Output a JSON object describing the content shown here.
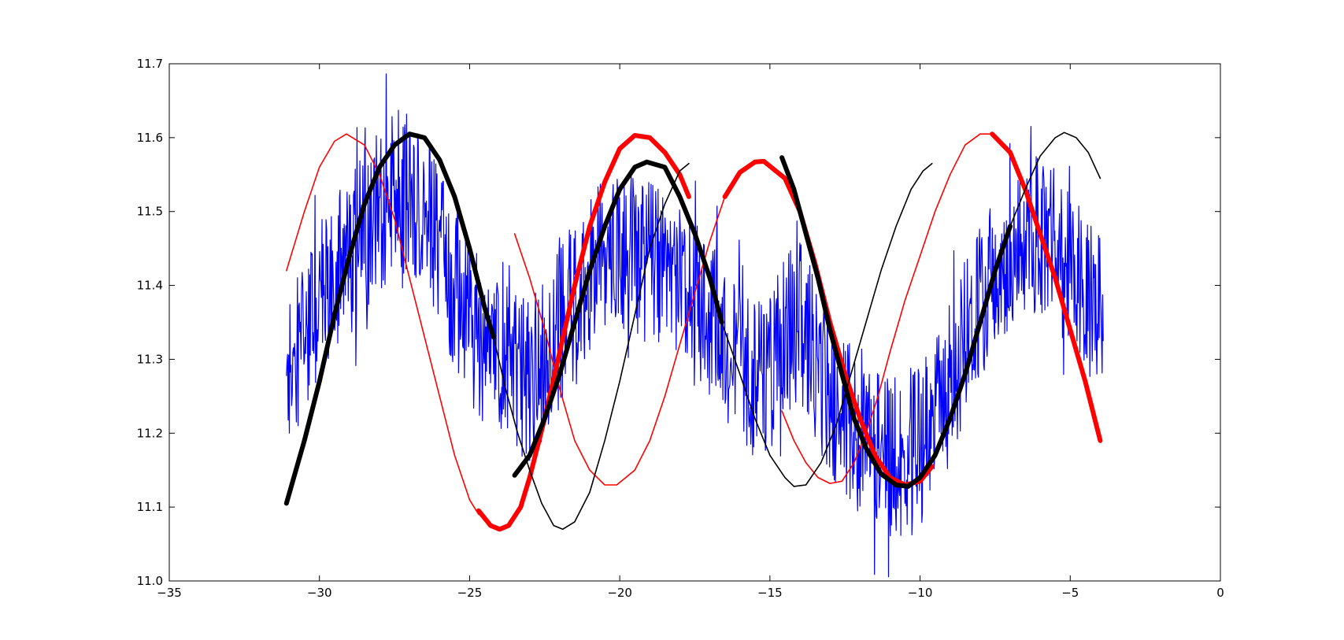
{
  "chart_data": {
    "type": "line",
    "title": "",
    "xlabel": "",
    "ylabel": "",
    "xlim": [
      -35,
      0
    ],
    "ylim": [
      11.0,
      11.7
    ],
    "xticks": [
      -35,
      -30,
      -25,
      -20,
      -15,
      -10,
      -5,
      0
    ],
    "yticks": [
      11.0,
      11.1,
      11.2,
      11.3,
      11.4,
      11.5,
      11.6,
      11.7
    ],
    "xtick_labels": [
      "−35",
      "−30",
      "−25",
      "−20",
      "−15",
      "−10",
      "−5",
      "0"
    ],
    "ytick_labels": [
      "11.0",
      "11.1",
      "11.2",
      "11.3",
      "11.4",
      "11.5",
      "11.6",
      "11.7"
    ],
    "grid": false,
    "legend": "none",
    "colors": {
      "noise": "#0000ff",
      "red": "#ff0000",
      "black": "#000000"
    },
    "series": [
      {
        "style": "noisy-signal",
        "color": "#0000ff",
        "x_range": [
          -31.1,
          -3.9
        ],
        "points": [
          [
            -31.1,
            11.27
          ],
          [
            -30.5,
            11.32
          ],
          [
            -30.0,
            11.37
          ],
          [
            -29.5,
            11.42
          ],
          [
            -29.0,
            11.45
          ],
          [
            -28.5,
            11.47
          ],
          [
            -28.0,
            11.5
          ],
          [
            -27.5,
            11.53
          ],
          [
            -27.0,
            11.52
          ],
          [
            -26.5,
            11.5
          ],
          [
            -26.0,
            11.45
          ],
          [
            -25.5,
            11.4
          ],
          [
            -25.0,
            11.35
          ],
          [
            -24.5,
            11.32
          ],
          [
            -24.0,
            11.3
          ],
          [
            -23.5,
            11.28
          ],
          [
            -23.0,
            11.27
          ],
          [
            -22.5,
            11.3
          ],
          [
            -22.0,
            11.34
          ],
          [
            -21.5,
            11.38
          ],
          [
            -21.0,
            11.42
          ],
          [
            -20.5,
            11.44
          ],
          [
            -20.0,
            11.45
          ],
          [
            -19.5,
            11.44
          ],
          [
            -19.0,
            11.43
          ],
          [
            -18.5,
            11.42
          ],
          [
            -18.0,
            11.4
          ],
          [
            -17.5,
            11.38
          ],
          [
            -17.0,
            11.36
          ],
          [
            -16.5,
            11.33
          ],
          [
            -16.0,
            11.3
          ],
          [
            -15.5,
            11.27
          ],
          [
            -15.0,
            11.28
          ],
          [
            -14.5,
            11.33
          ],
          [
            -14.0,
            11.35
          ],
          [
            -13.5,
            11.3
          ],
          [
            -13.0,
            11.25
          ],
          [
            -12.5,
            11.22
          ],
          [
            -12.0,
            11.2
          ],
          [
            -11.5,
            11.18
          ],
          [
            -11.0,
            11.17
          ],
          [
            -10.5,
            11.16
          ],
          [
            -10.0,
            11.18
          ],
          [
            -9.5,
            11.22
          ],
          [
            -9.0,
            11.27
          ],
          [
            -8.5,
            11.33
          ],
          [
            -8.0,
            11.38
          ],
          [
            -7.5,
            11.42
          ],
          [
            -7.0,
            11.45
          ],
          [
            -6.5,
            11.47
          ],
          [
            -6.0,
            11.47
          ],
          [
            -5.5,
            11.45
          ],
          [
            -5.0,
            11.42
          ],
          [
            -4.5,
            11.38
          ],
          [
            -3.9,
            11.35
          ]
        ],
        "noise_amplitude": 0.11
      },
      {
        "style": "thin",
        "color": "#ff0000",
        "points": [
          [
            -31.1,
            11.42
          ],
          [
            -30.5,
            11.5
          ],
          [
            -30.0,
            11.56
          ],
          [
            -29.5,
            11.595
          ],
          [
            -29.1,
            11.605
          ],
          [
            -28.5,
            11.59
          ],
          [
            -28.0,
            11.55
          ],
          [
            -27.5,
            11.49
          ],
          [
            -27.0,
            11.41
          ],
          [
            -26.5,
            11.33
          ],
          [
            -26.0,
            11.25
          ],
          [
            -25.5,
            11.17
          ],
          [
            -25.0,
            11.11
          ],
          [
            -24.7,
            11.09
          ]
        ]
      },
      {
        "style": "thick",
        "color": "#ff0000",
        "points": [
          [
            -24.7,
            11.095
          ],
          [
            -24.3,
            11.075
          ],
          [
            -24.0,
            11.07
          ],
          [
            -23.7,
            11.075
          ],
          [
            -23.3,
            11.1
          ],
          [
            -23.0,
            11.14
          ],
          [
            -22.5,
            11.22
          ],
          [
            -22.0,
            11.31
          ],
          [
            -21.5,
            11.4
          ],
          [
            -21.0,
            11.48
          ],
          [
            -20.5,
            11.54
          ],
          [
            -20.0,
            11.585
          ],
          [
            -19.5,
            11.603
          ],
          [
            -19.0,
            11.6
          ],
          [
            -18.5,
            11.58
          ],
          [
            -18.0,
            11.55
          ],
          [
            -17.7,
            11.52
          ]
        ]
      },
      {
        "style": "thin",
        "color": "#ff0000",
        "points": [
          [
            -23.5,
            11.47
          ],
          [
            -23.0,
            11.41
          ],
          [
            -22.5,
            11.34
          ],
          [
            -22.0,
            11.26
          ],
          [
            -21.5,
            11.19
          ],
          [
            -21.0,
            11.15
          ],
          [
            -20.5,
            11.13
          ],
          [
            -20.1,
            11.13
          ],
          [
            -19.5,
            11.15
          ],
          [
            -19.0,
            11.19
          ],
          [
            -18.5,
            11.25
          ],
          [
            -18.0,
            11.32
          ],
          [
            -17.5,
            11.39
          ],
          [
            -17.0,
            11.46
          ],
          [
            -16.5,
            11.52
          ],
          [
            -16.0,
            11.555
          ],
          [
            -15.5,
            11.568
          ]
        ]
      },
      {
        "style": "thick",
        "color": "#ff0000",
        "points": [
          [
            -16.5,
            11.52
          ],
          [
            -16.0,
            11.553
          ],
          [
            -15.5,
            11.567
          ],
          [
            -15.2,
            11.568
          ],
          [
            -14.5,
            11.545
          ],
          [
            -14.0,
            11.5
          ],
          [
            -13.5,
            11.43
          ],
          [
            -13.0,
            11.35
          ],
          [
            -12.5,
            11.28
          ],
          [
            -12.0,
            11.22
          ],
          [
            -11.5,
            11.17
          ],
          [
            -11.0,
            11.14
          ],
          [
            -10.5,
            11.13
          ],
          [
            -10.0,
            11.135
          ],
          [
            -9.6,
            11.155
          ]
        ]
      },
      {
        "style": "thin",
        "color": "#ff0000",
        "points": [
          [
            -14.6,
            11.23
          ],
          [
            -14.2,
            11.19
          ],
          [
            -13.8,
            11.16
          ],
          [
            -13.4,
            11.14
          ],
          [
            -13.0,
            11.132
          ],
          [
            -12.6,
            11.135
          ],
          [
            -12.2,
            11.16
          ],
          [
            -11.8,
            11.2
          ],
          [
            -11.4,
            11.25
          ],
          [
            -11.0,
            11.31
          ],
          [
            -10.5,
            11.38
          ],
          [
            -10.0,
            11.44
          ],
          [
            -9.5,
            11.5
          ],
          [
            -9.0,
            11.55
          ],
          [
            -8.5,
            11.59
          ],
          [
            -8.0,
            11.605
          ],
          [
            -7.6,
            11.605
          ]
        ]
      },
      {
        "style": "thick",
        "color": "#ff0000",
        "points": [
          [
            -7.6,
            11.605
          ],
          [
            -7.0,
            11.58
          ],
          [
            -6.5,
            11.53
          ],
          [
            -6.0,
            11.47
          ],
          [
            -5.5,
            11.41
          ],
          [
            -5.0,
            11.34
          ],
          [
            -4.5,
            11.27
          ],
          [
            -4.0,
            11.19
          ]
        ]
      },
      {
        "style": "thick",
        "color": "#000000",
        "points": [
          [
            -31.1,
            11.105
          ],
          [
            -30.5,
            11.19
          ],
          [
            -30.0,
            11.27
          ],
          [
            -29.5,
            11.36
          ],
          [
            -29.0,
            11.44
          ],
          [
            -28.5,
            11.51
          ],
          [
            -28.0,
            11.56
          ],
          [
            -27.5,
            11.59
          ],
          [
            -27.0,
            11.605
          ],
          [
            -26.5,
            11.6
          ],
          [
            -26.0,
            11.57
          ],
          [
            -25.5,
            11.52
          ],
          [
            -25.0,
            11.45
          ],
          [
            -24.5,
            11.37
          ],
          [
            -24.2,
            11.33
          ]
        ]
      },
      {
        "style": "thin",
        "color": "#000000",
        "points": [
          [
            -24.2,
            11.33
          ],
          [
            -23.8,
            11.26
          ],
          [
            -23.4,
            11.2
          ],
          [
            -23.0,
            11.15
          ],
          [
            -22.6,
            11.105
          ],
          [
            -22.2,
            11.075
          ],
          [
            -21.9,
            11.07
          ],
          [
            -21.5,
            11.08
          ],
          [
            -21.0,
            11.12
          ],
          [
            -20.5,
            11.19
          ],
          [
            -20.0,
            11.27
          ],
          [
            -19.5,
            11.36
          ],
          [
            -19.0,
            11.45
          ],
          [
            -18.5,
            11.51
          ],
          [
            -18.0,
            11.555
          ],
          [
            -17.7,
            11.565
          ]
        ]
      },
      {
        "style": "thick",
        "color": "#000000",
        "points": [
          [
            -23.5,
            11.143
          ],
          [
            -23.0,
            11.17
          ],
          [
            -22.5,
            11.22
          ],
          [
            -22.0,
            11.28
          ],
          [
            -21.5,
            11.35
          ],
          [
            -21.0,
            11.42
          ],
          [
            -20.5,
            11.48
          ],
          [
            -20.0,
            11.53
          ],
          [
            -19.5,
            11.56
          ],
          [
            -19.1,
            11.567
          ],
          [
            -18.5,
            11.56
          ],
          [
            -18.0,
            11.52
          ],
          [
            -17.5,
            11.47
          ],
          [
            -17.0,
            11.41
          ],
          [
            -16.6,
            11.35
          ]
        ]
      },
      {
        "style": "thin",
        "color": "#000000",
        "points": [
          [
            -16.6,
            11.35
          ],
          [
            -16.0,
            11.28
          ],
          [
            -15.5,
            11.22
          ],
          [
            -15.0,
            11.17
          ],
          [
            -14.5,
            11.14
          ],
          [
            -14.2,
            11.128
          ],
          [
            -13.8,
            11.13
          ],
          [
            -13.3,
            11.16
          ],
          [
            -12.8,
            11.21
          ],
          [
            -12.3,
            11.28
          ],
          [
            -11.8,
            11.35
          ],
          [
            -11.3,
            11.42
          ],
          [
            -10.8,
            11.48
          ],
          [
            -10.3,
            11.53
          ],
          [
            -9.9,
            11.555
          ],
          [
            -9.6,
            11.565
          ]
        ]
      },
      {
        "style": "thick",
        "color": "#000000",
        "points": [
          [
            -14.6,
            11.573
          ],
          [
            -14.2,
            11.53
          ],
          [
            -13.8,
            11.47
          ],
          [
            -13.4,
            11.41
          ],
          [
            -13.0,
            11.34
          ],
          [
            -12.6,
            11.28
          ],
          [
            -12.2,
            11.22
          ],
          [
            -11.8,
            11.18
          ],
          [
            -11.3,
            11.145
          ],
          [
            -10.8,
            11.13
          ],
          [
            -10.4,
            11.128
          ],
          [
            -10.0,
            11.14
          ],
          [
            -9.5,
            11.17
          ],
          [
            -9.0,
            11.22
          ],
          [
            -8.5,
            11.28
          ],
          [
            -8.0,
            11.35
          ],
          [
            -7.5,
            11.42
          ],
          [
            -7.0,
            11.48
          ]
        ]
      },
      {
        "style": "thin",
        "color": "#000000",
        "points": [
          [
            -7.0,
            11.48
          ],
          [
            -6.5,
            11.53
          ],
          [
            -6.0,
            11.575
          ],
          [
            -5.5,
            11.6
          ],
          [
            -5.2,
            11.607
          ],
          [
            -4.8,
            11.6
          ],
          [
            -4.4,
            11.58
          ],
          [
            -4.0,
            11.545
          ]
        ]
      }
    ]
  }
}
